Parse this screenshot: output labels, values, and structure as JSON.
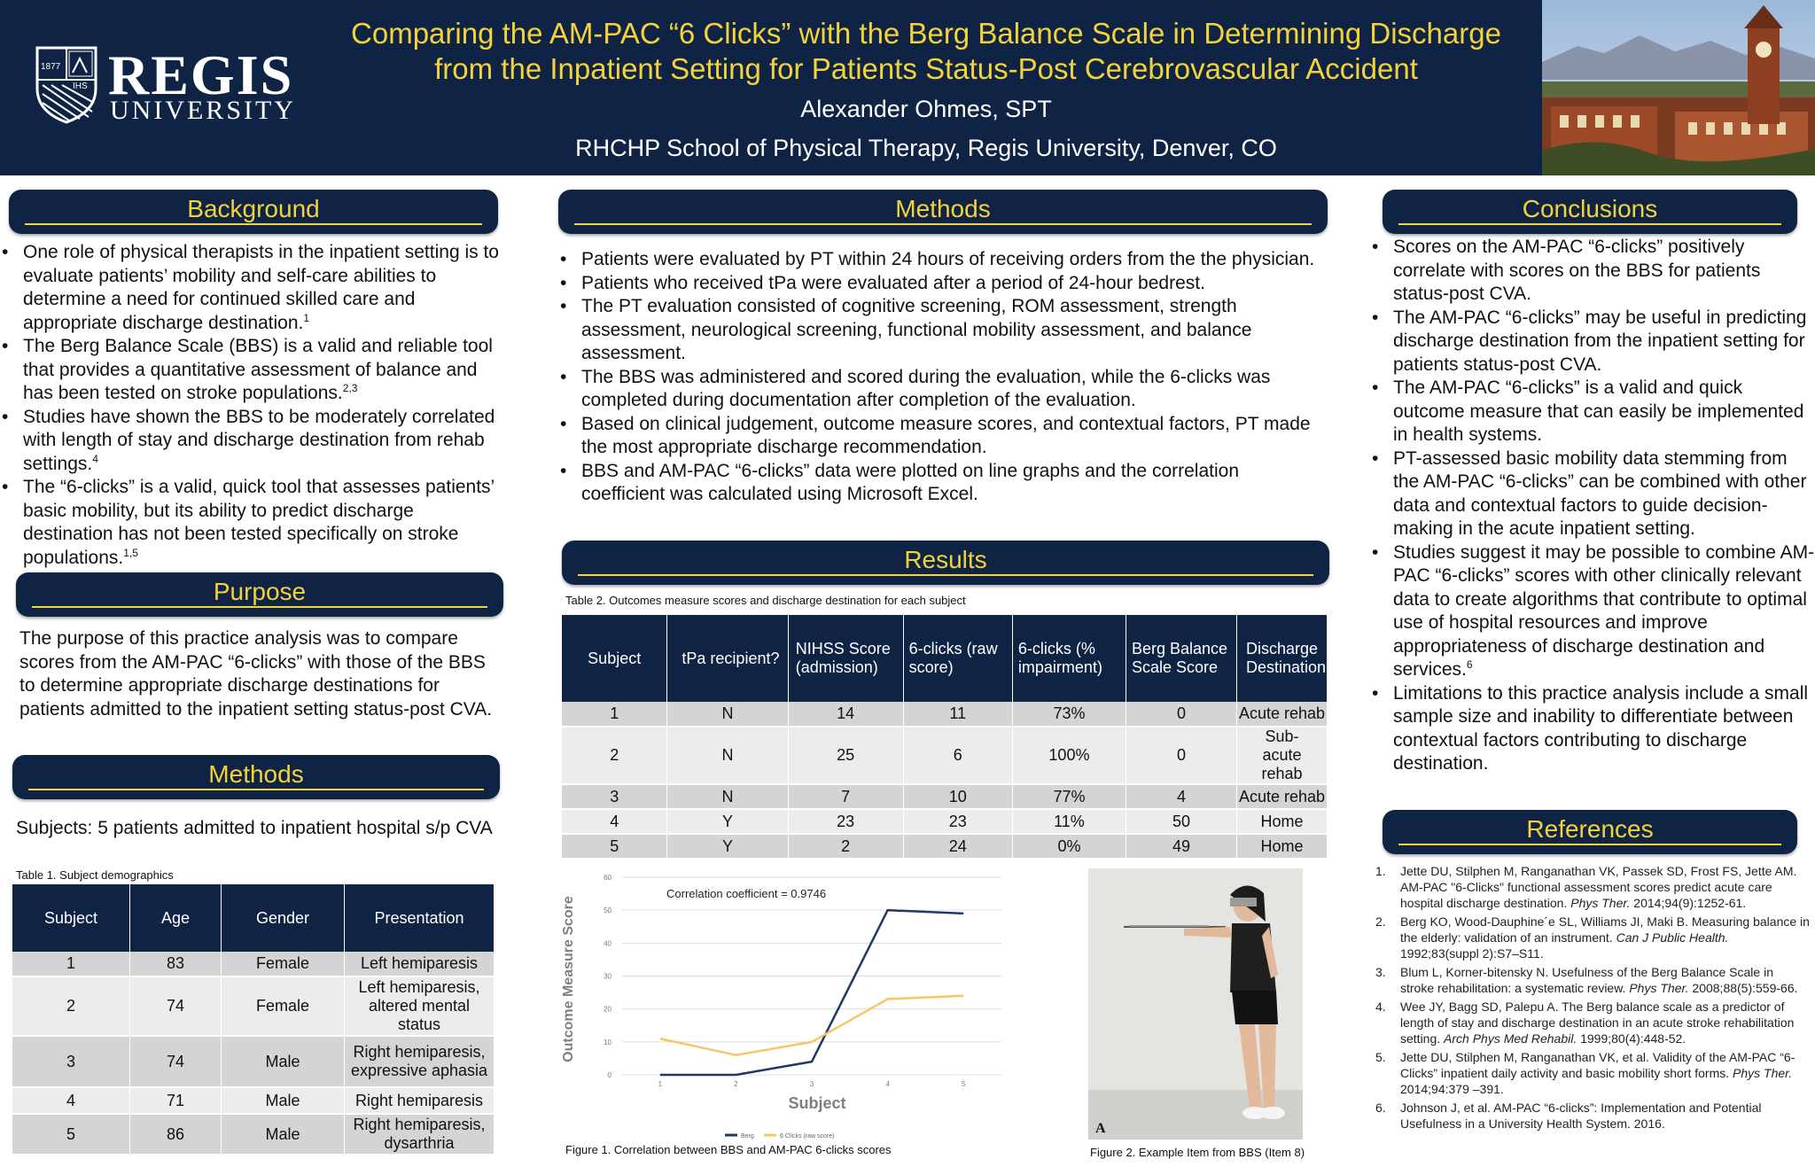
{
  "header": {
    "logo_regis": "REGIS",
    "logo_university": "UNIVERSITY",
    "logo_year": "1877",
    "logo_ihs": "IHS",
    "title_line1": "Comparing the AM-PAC “6 Clicks” with the Berg Balance Scale in Determining Discharge",
    "title_line2": "from the Inpatient Setting for Patients Status-Post Cerebrovascular Accident",
    "author": "Alexander Ohmes, SPT",
    "affiliation": "RHCHP School of Physical Therapy, Regis University, Denver, CO"
  },
  "background": {
    "heading": "Background",
    "items": [
      {
        "text": "One role of physical therapists in the inpatient setting is to evaluate patients’ mobility and self-care abilities to determine a need for continued skilled care and appropriate discharge destination.",
        "sup": "1"
      },
      {
        "text": "The Berg Balance Scale (BBS) is a valid and reliable tool that provides a quantitative assessment of balance and has been tested on stroke populations.",
        "sup": "2,3"
      },
      {
        "text": "Studies have shown the BBS to be moderately correlated with length of stay and discharge destination from rehab settings.",
        "sup": "4"
      },
      {
        "text": "The “6-clicks” is a valid, quick tool that assesses patients’ basic mobility, but its ability to predict discharge destination has not been tested specifically on stroke populations.",
        "sup": "1,5"
      }
    ]
  },
  "purpose": {
    "heading": "Purpose",
    "text": "The purpose of this practice analysis was to compare scores from the AM-PAC “6-clicks” with those of the BBS to determine appropriate discharge destinations for patients admitted to the inpatient setting status-post CVA."
  },
  "methods_left": {
    "heading": "Methods",
    "subjects": "Subjects:  5 patients admitted to inpatient hospital s/p CVA"
  },
  "table1": {
    "caption": "Table 1. Subject demographics",
    "headers": [
      "Subject",
      "Age",
      "Gender",
      "Presentation"
    ],
    "rows": [
      [
        "1",
        "83",
        "Female",
        "Left hemiparesis"
      ],
      [
        "2",
        "74",
        "Female",
        "Left hemiparesis, altered mental status"
      ],
      [
        "3",
        "74",
        "Male",
        "Right hemiparesis, expressive aphasia"
      ],
      [
        "4",
        "71",
        "Male",
        "Right hemiparesis"
      ],
      [
        "5",
        "86",
        "Male",
        "Right hemiparesis, dysarthria"
      ]
    ]
  },
  "methods_center": {
    "heading": "Methods",
    "items": [
      "Patients were evaluated by PT within 24 hours of receiving orders from the the physician.",
      "Patients who received tPa were evaluated after a period of 24-hour bedrest.",
      "The PT evaluation consisted of cognitive screening, ROM assessment, strength assessment, neurological screening, functional mobility assessment, and balance assessment.",
      "The BBS was administered and scored during the evaluation, while the 6-clicks was completed during documentation after completion of the evaluation.",
      "Based on clinical judgement, outcome measure scores, and contextual factors, PT made the most appropriate discharge recommendation.",
      "BBS and AM-PAC “6-clicks” data were plotted on line graphs and the correlation coefficient was calculated using Microsoft Excel."
    ]
  },
  "results": {
    "heading": "Results"
  },
  "table2": {
    "caption": "Table 2. Outcomes measure scores and discharge destination for each subject",
    "headers": [
      "Subject",
      "tPa recipient?",
      "NIHSS Score (admission)",
      "6-clicks (raw score)",
      "6-clicks (% impairment)",
      "Berg Balance Scale Score",
      "Discharge Destination"
    ],
    "rows": [
      [
        "1",
        "N",
        "14",
        "11",
        "73%",
        "0",
        "Acute rehab"
      ],
      [
        "2",
        "N",
        "25",
        "6",
        "100%",
        "0",
        "Sub-acute rehab"
      ],
      [
        "3",
        "N",
        "7",
        "10",
        "77%",
        "4",
        "Acute rehab"
      ],
      [
        "4",
        "Y",
        "23",
        "23",
        "11%",
        "50",
        "Home"
      ],
      [
        "5",
        "Y",
        "2",
        "24",
        "0%",
        "49",
        "Home"
      ]
    ]
  },
  "figure1": {
    "caption": "Figure 1. Correlation between BBS and AM-PAC 6-clicks scores"
  },
  "figure2": {
    "caption": "Figure 2. Example Item from BBS (Item 8)",
    "panel_label": "A"
  },
  "conclusions": {
    "heading": "Conclusions",
    "items": [
      {
        "text": "Scores on the AM-PAC “6-clicks” positively correlate with scores on the BBS for patients status-post CVA.",
        "sup": ""
      },
      {
        "text": "The AM-PAC “6-clicks” may be useful in predicting discharge destination from the inpatient setting for patients status-post CVA.",
        "sup": ""
      },
      {
        "text": "The AM-PAC “6-clicks” is a valid and quick outcome measure that can easily be implemented in health systems.",
        "sup": ""
      },
      {
        "text": "PT-assessed basic mobility data stemming from the AM-PAC “6-clicks” can be combined with other data and contextual factors to guide decision-making in the acute inpatient setting.",
        "sup": ""
      },
      {
        "text": "Studies suggest it may be possible to combine AM-PAC “6-clicks” scores with other clinically relevant data to create algorithms that contribute to optimal use of hospital resources and improve appropriateness of discharge destination and services.",
        "sup": "6"
      },
      {
        "text": "Limitations to this practice analysis include a small sample size and inability to differentiate between contextual factors contributing to discharge destination.",
        "sup": ""
      }
    ]
  },
  "references": {
    "heading": "References",
    "items": [
      {
        "num": "1.",
        "pre": "Jette DU, Stilphen M, Ranganathan VK, Passek SD, Frost FS, Jette AM. AM-PAC \"6-Clicks\" functional assessment scores predict acute care hospital discharge destination. ",
        "journal": "Phys Ther.",
        "post": " 2014;94(9):1252-61."
      },
      {
        "num": "2.",
        "pre": "Berg KO, Wood-Dauphine´e SL, Williams JI, Maki B. Measuring balance in the elderly: validation of an instrument. ",
        "journal": "Can J Public Health.",
        "post": " 1992;83(suppl 2):S7–S11."
      },
      {
        "num": "3.",
        "pre": "Blum L, Korner-bitensky N. Usefulness of the Berg Balance Scale in stroke rehabilitation: a systematic review. ",
        "journal": "Phys Ther.",
        "post": " 2008;88(5):559-66."
      },
      {
        "num": "4.",
        "pre": "Wee JY, Bagg SD, Palepu A. The Berg balance scale as a predictor of length of stay and discharge destination in an acute stroke rehabilitation setting. ",
        "journal": "Arch Phys Med Rehabil.",
        "post": " 1999;80(4):448-52."
      },
      {
        "num": "5.",
        "pre": "Jette DU, Stilphen M, Ranganathan VK, et al. Validity of the AM-PAC “6-Clicks” inpatient daily activity and basic mobility short forms. ",
        "journal": "Phys Ther.",
        "post": " 2014;94:379 –391."
      },
      {
        "num": "6.",
        "pre": "Johnson J, et al. AM-PAC “6-clicks”: Implementation and Potential Usefulness in a University Health System. 2016.",
        "journal": "",
        "post": ""
      }
    ]
  },
  "chart_data": {
    "type": "line",
    "title": "",
    "annotation": "Correlation coefficient = 0.9746",
    "xlabel": "Subject",
    "ylabel": "Outcome Measure Score",
    "categories": [
      1,
      2,
      3,
      4,
      5
    ],
    "x_ticks": [
      "1",
      "2",
      "3",
      "4",
      "5"
    ],
    "ylim": [
      0,
      60
    ],
    "y_ticks": [
      "0",
      "10",
      "20",
      "30",
      "40",
      "50",
      "60"
    ],
    "grid": "horizontal",
    "legend": "bottom",
    "series": [
      {
        "name": "Berg",
        "color": "#1f3864",
        "values": [
          0,
          0,
          4,
          50,
          49
        ]
      },
      {
        "name": "6 Clicks (raw score)",
        "color": "#f6c667",
        "values": [
          11,
          6,
          10,
          23,
          24
        ]
      }
    ]
  }
}
